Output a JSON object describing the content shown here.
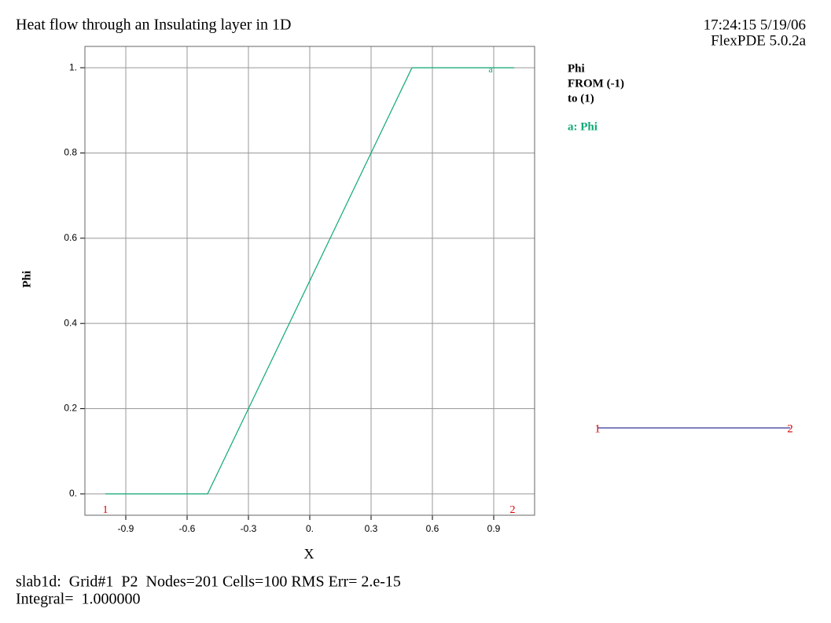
{
  "chart_data": {
    "type": "line",
    "title": "Heat flow through an Insulating layer in 1D",
    "timestamp": "17:24:15 5/19/06",
    "version": "FlexPDE 5.0.2a",
    "legend_title": [
      "Phi",
      "FROM (-1)",
      "to (1)"
    ],
    "x_label": "X",
    "y_label": "Phi",
    "x": [
      -1,
      -0.5,
      0.5,
      1
    ],
    "series": [
      {
        "name": "a: Phi",
        "marker": "a",
        "color": "#10a878",
        "values": [
          0,
          0,
          1,
          1
        ]
      }
    ],
    "xlim": [
      -1.1,
      1.1
    ],
    "ylim": [
      -0.05,
      1.05
    ],
    "xticks": [
      -0.9,
      -0.6,
      -0.3,
      {
        "value": 0,
        "label": "0."
      },
      0.3,
      0.6,
      0.9
    ],
    "yticks": [
      {
        "value": 0,
        "label": "0."
      },
      0.2,
      0.4,
      0.6,
      0.8,
      {
        "value": 1,
        "label": "1."
      }
    ],
    "grid": true,
    "plot_endpoints": [
      "1",
      "2"
    ],
    "path_endpoints": [
      "1",
      "2"
    ],
    "footer": [
      "slab1d:  Grid#1  P2  Nodes=201 Cells=100 RMS Err= 2.e-15",
      "Integral=  1.000000"
    ]
  }
}
